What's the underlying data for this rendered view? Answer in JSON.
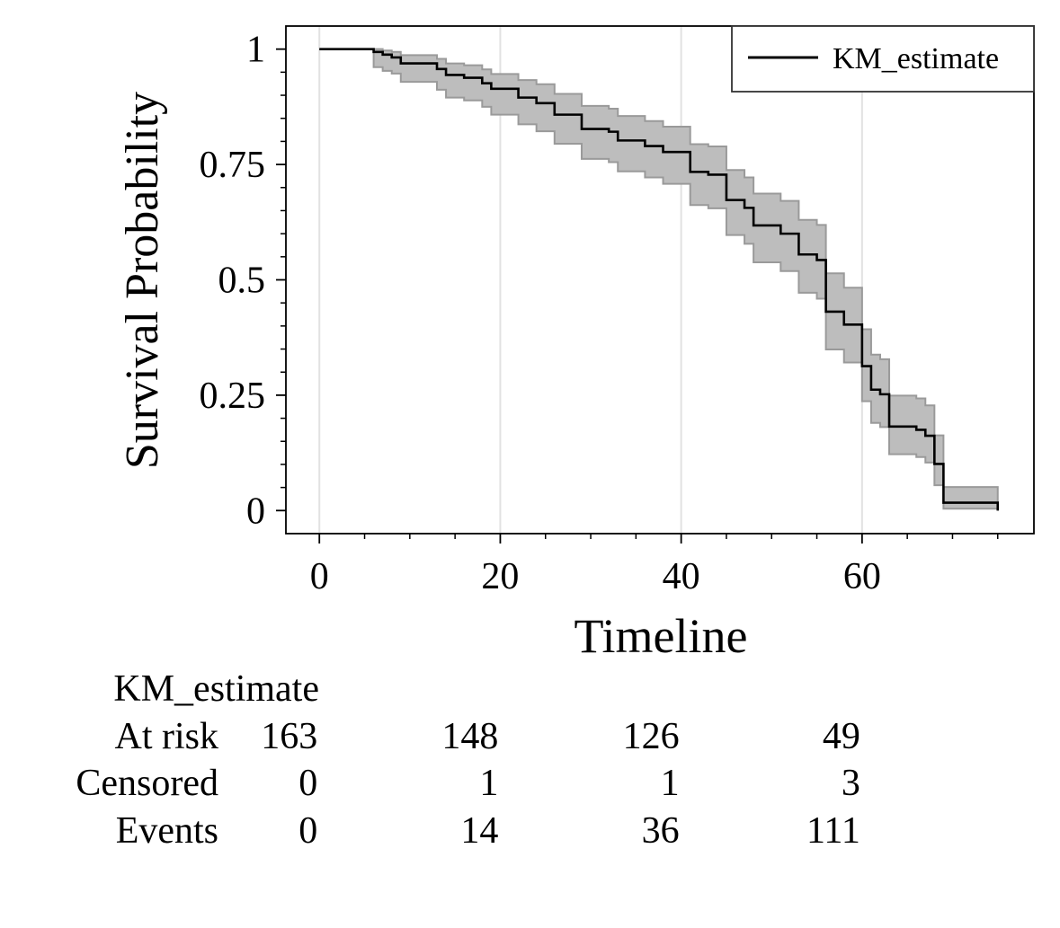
{
  "chart_data": {
    "type": "line",
    "title": "",
    "xlabel": "Timeline",
    "ylabel": "Survival Probability",
    "xlim": [
      -3.7,
      79
    ],
    "ylim": [
      -0.05,
      1.05
    ],
    "x_ticks": [
      0,
      20,
      40,
      60
    ],
    "x_tick_labels": [
      "0",
      "20",
      "40",
      "60"
    ],
    "x_minor_ticks": [
      5,
      10,
      15,
      25,
      30,
      35,
      45,
      50,
      55,
      65,
      70,
      75
    ],
    "y_ticks": [
      0,
      0.25,
      0.5,
      0.75,
      1
    ],
    "y_tick_labels": [
      "0",
      "0.25",
      "0.5",
      "0.75",
      "1"
    ],
    "y_minor_step": 0.05,
    "vertical_grid": true,
    "legend_position": "top-right",
    "series": [
      {
        "name": "KM_estimate",
        "color": "#000000",
        "ci_color": "#bdbdbd",
        "steps": [
          {
            "x": 0,
            "y": 1.0,
            "lo": 1.0,
            "hi": 1.0
          },
          {
            "x": 6,
            "y": 0.994,
            "lo": 0.961,
            "hi": 1.0
          },
          {
            "x": 7,
            "y": 0.988,
            "lo": 0.953,
            "hi": 0.997
          },
          {
            "x": 8,
            "y": 0.982,
            "lo": 0.947,
            "hi": 0.994
          },
          {
            "x": 9,
            "y": 0.969,
            "lo": 0.929,
            "hi": 0.987
          },
          {
            "x": 13,
            "y": 0.957,
            "lo": 0.912,
            "hi": 0.979
          },
          {
            "x": 14,
            "y": 0.944,
            "lo": 0.895,
            "hi": 0.969
          },
          {
            "x": 16,
            "y": 0.938,
            "lo": 0.889,
            "hi": 0.965
          },
          {
            "x": 18,
            "y": 0.926,
            "lo": 0.875,
            "hi": 0.956
          },
          {
            "x": 19,
            "y": 0.914,
            "lo": 0.858,
            "hi": 0.946
          },
          {
            "x": 22,
            "y": 0.895,
            "lo": 0.837,
            "hi": 0.933
          },
          {
            "x": 24,
            "y": 0.883,
            "lo": 0.822,
            "hi": 0.924
          },
          {
            "x": 26,
            "y": 0.858,
            "lo": 0.795,
            "hi": 0.903
          },
          {
            "x": 29,
            "y": 0.827,
            "lo": 0.762,
            "hi": 0.877
          },
          {
            "x": 32,
            "y": 0.821,
            "lo": 0.755,
            "hi": 0.871
          },
          {
            "x": 33,
            "y": 0.802,
            "lo": 0.735,
            "hi": 0.855
          },
          {
            "x": 36,
            "y": 0.79,
            "lo": 0.722,
            "hi": 0.844
          },
          {
            "x": 38,
            "y": 0.777,
            "lo": 0.708,
            "hi": 0.832
          },
          {
            "x": 41,
            "y": 0.734,
            "lo": 0.662,
            "hi": 0.794
          },
          {
            "x": 43,
            "y": 0.728,
            "lo": 0.655,
            "hi": 0.789
          },
          {
            "x": 45,
            "y": 0.673,
            "lo": 0.597,
            "hi": 0.738
          },
          {
            "x": 47,
            "y": 0.656,
            "lo": 0.578,
            "hi": 0.722
          },
          {
            "x": 48,
            "y": 0.618,
            "lo": 0.538,
            "hi": 0.687
          },
          {
            "x": 51,
            "y": 0.6,
            "lo": 0.519,
            "hi": 0.671
          },
          {
            "x": 53,
            "y": 0.555,
            "lo": 0.472,
            "hi": 0.63
          },
          {
            "x": 55,
            "y": 0.543,
            "lo": 0.459,
            "hi": 0.619
          },
          {
            "x": 56,
            "y": 0.431,
            "lo": 0.349,
            "hi": 0.514
          },
          {
            "x": 58,
            "y": 0.403,
            "lo": 0.321,
            "hi": 0.483
          },
          {
            "x": 60,
            "y": 0.313,
            "lo": 0.237,
            "hi": 0.393
          },
          {
            "x": 61,
            "y": 0.262,
            "lo": 0.19,
            "hi": 0.338
          },
          {
            "x": 62,
            "y": 0.252,
            "lo": 0.181,
            "hi": 0.328
          },
          {
            "x": 63,
            "y": 0.182,
            "lo": 0.122,
            "hi": 0.249
          },
          {
            "x": 66,
            "y": 0.175,
            "lo": 0.116,
            "hi": 0.243
          },
          {
            "x": 67,
            "y": 0.162,
            "lo": 0.104,
            "hi": 0.228
          },
          {
            "x": 68,
            "y": 0.101,
            "lo": 0.055,
            "hi": 0.163
          },
          {
            "x": 69,
            "y": 0.017,
            "lo": 0.004,
            "hi": 0.051
          },
          {
            "x": 75,
            "y": 0.0,
            "lo": 0.0,
            "hi": 0.0
          }
        ]
      }
    ],
    "at_risk_table": {
      "series_label": "KM_estimate",
      "at_times": [
        0,
        20,
        40,
        60
      ],
      "rows": [
        {
          "label": "At risk",
          "values": [
            "163",
            "148",
            "126",
            "49"
          ]
        },
        {
          "label": "Censored",
          "values": [
            "0",
            "1",
            "1",
            "3"
          ]
        },
        {
          "label": "Events",
          "values": [
            "0",
            "14",
            "36",
            "111"
          ]
        }
      ]
    }
  }
}
